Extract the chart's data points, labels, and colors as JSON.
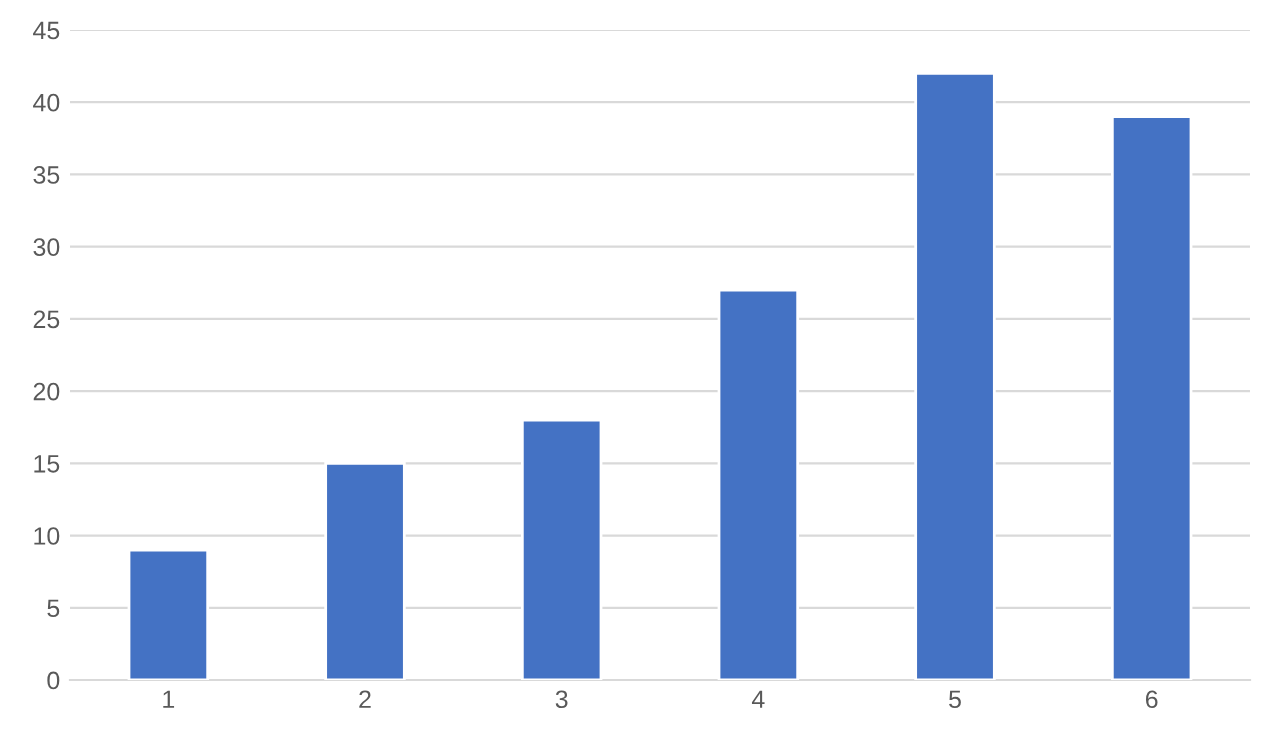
{
  "chart_data": {
    "type": "bar",
    "categories": [
      "1",
      "2",
      "3",
      "4",
      "5",
      "6"
    ],
    "values": [
      9,
      15,
      18,
      27,
      42,
      39
    ],
    "color": "#4472c4",
    "ylim": [
      0,
      45
    ],
    "yticks": [
      0,
      5,
      10,
      15,
      20,
      25,
      30,
      35,
      40,
      45
    ],
    "grid": "y",
    "legend": false
  }
}
